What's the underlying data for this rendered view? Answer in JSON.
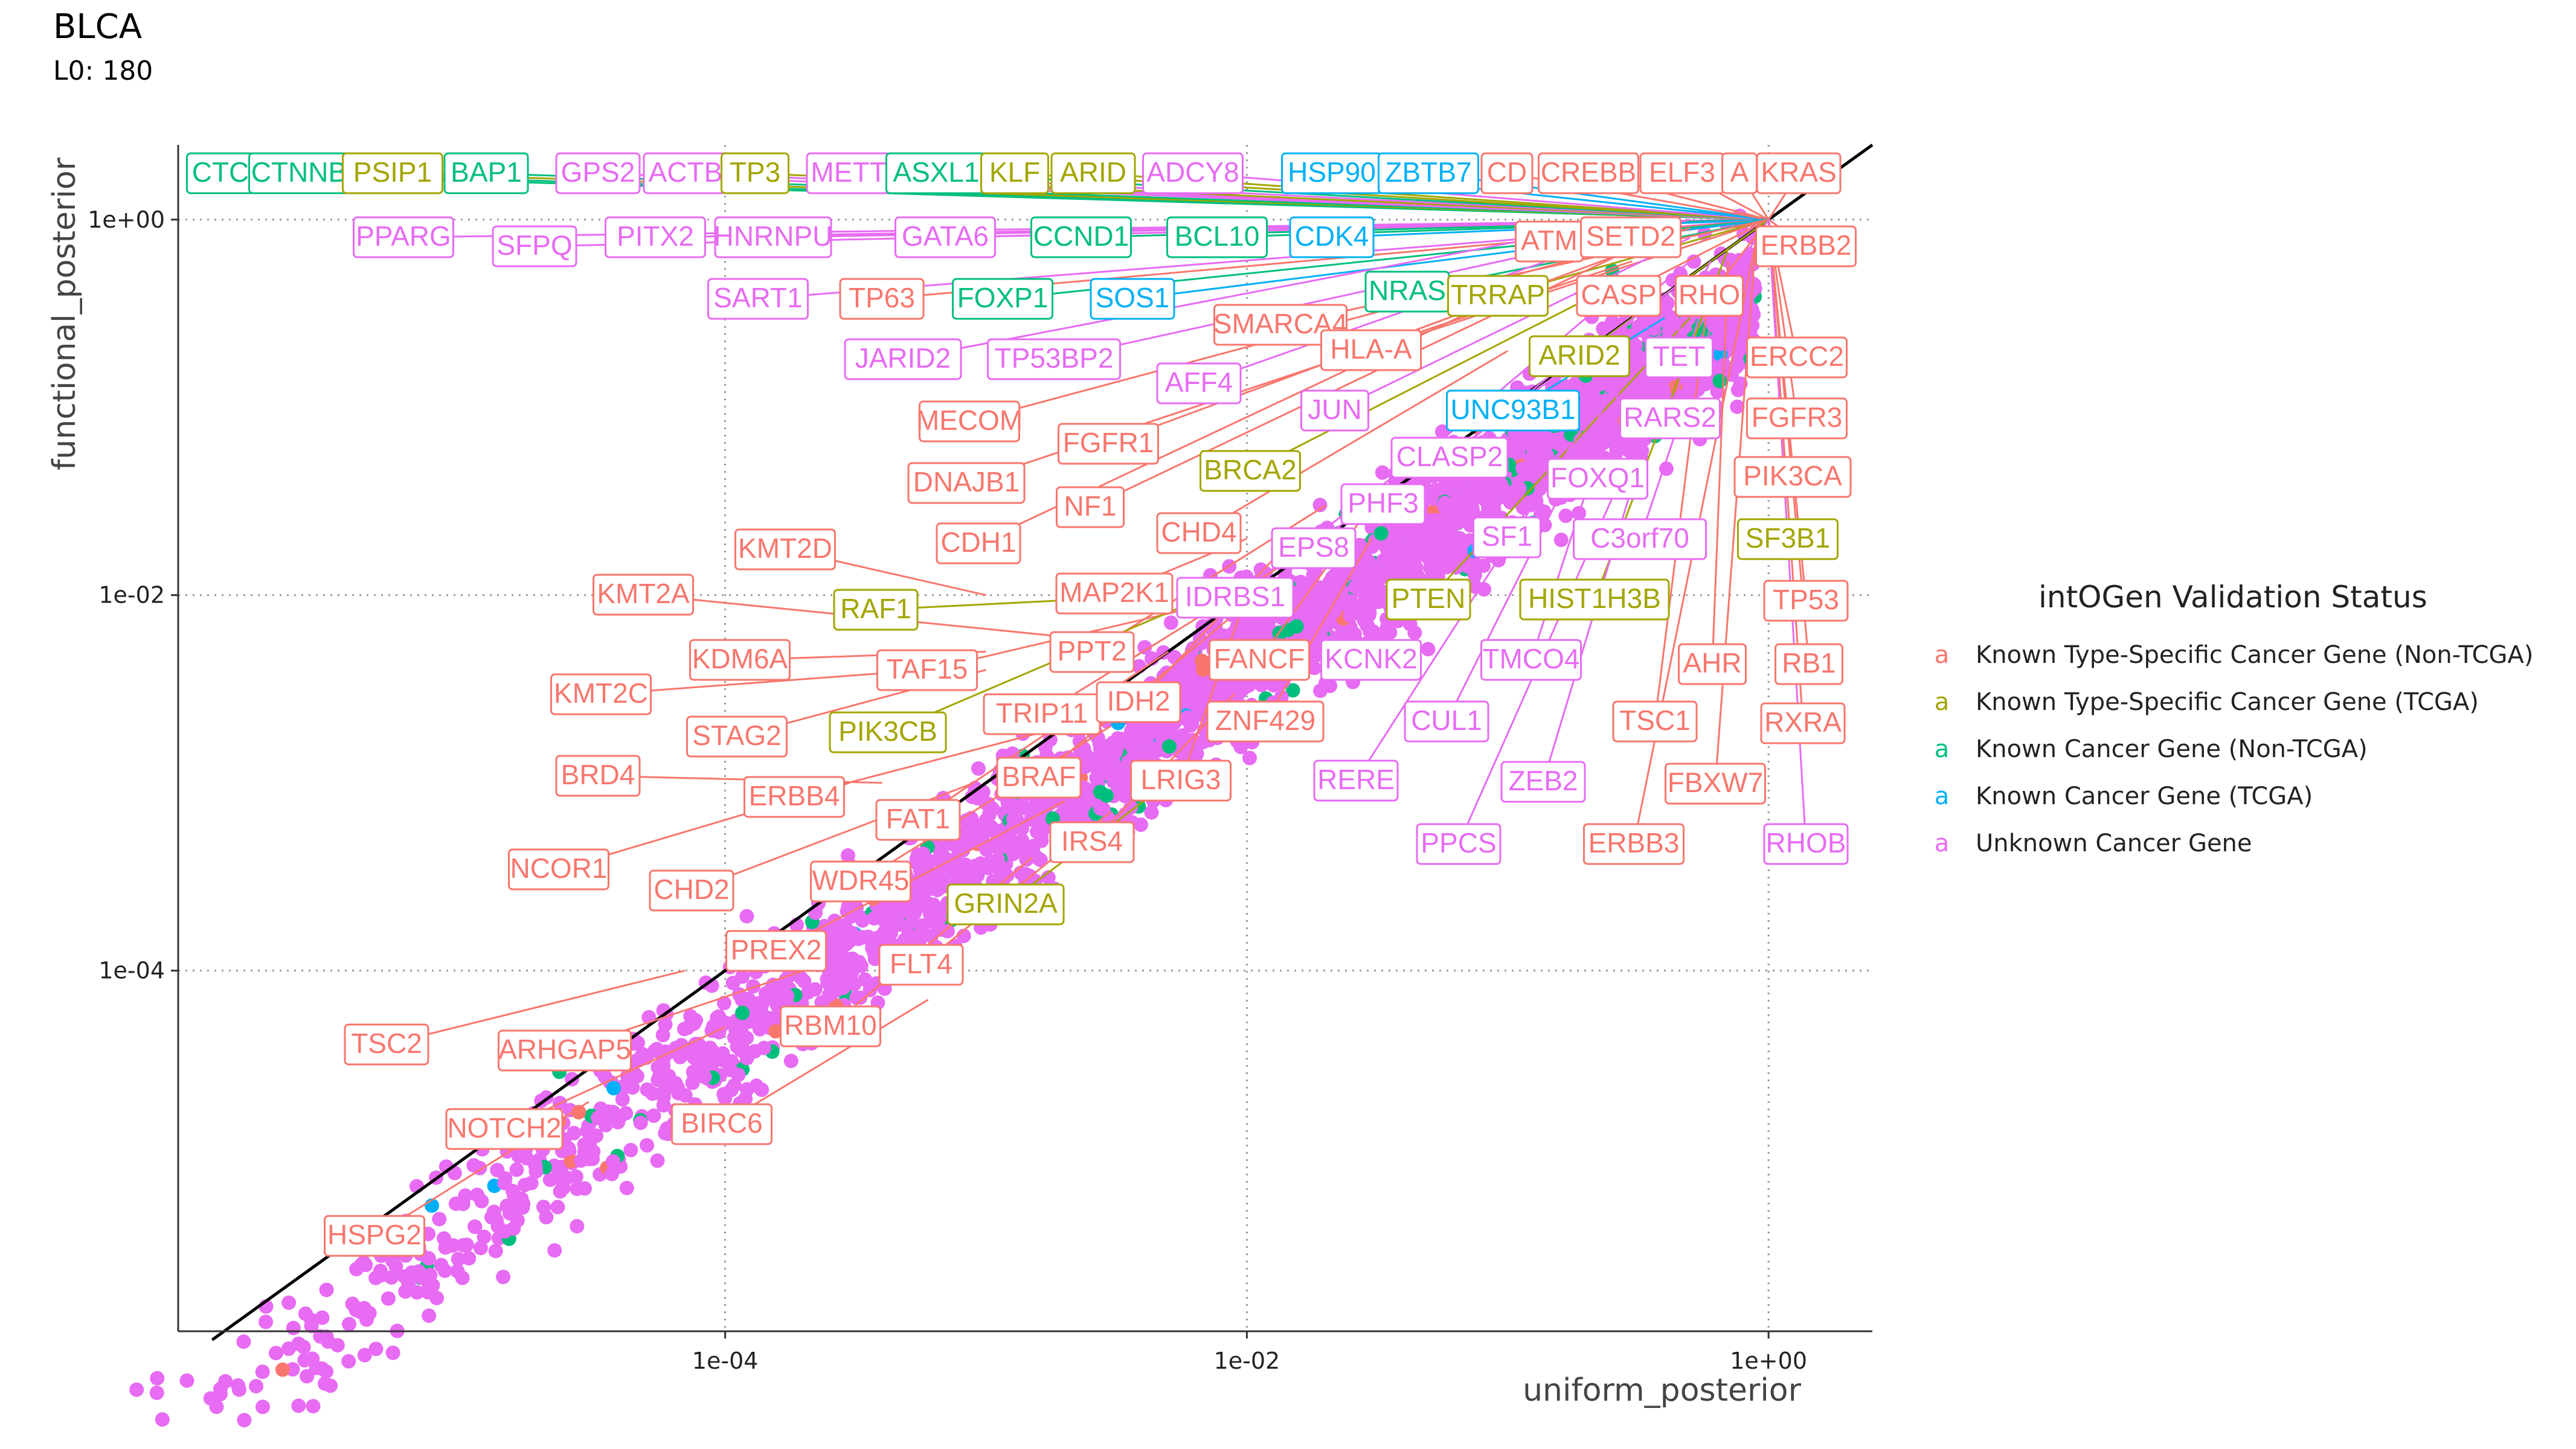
{
  "chart_data": {
    "type": "scatter",
    "title": "BLCA",
    "subtitle": "L0: 180",
    "xlabel": "uniform_posterior",
    "ylabel": "functional_posterior",
    "xscale": "log10",
    "yscale": "log10",
    "xlim": [
      8e-07,
      2.5
    ],
    "ylim": [
      1.2e-06,
      2.5
    ],
    "xticks": [
      {
        "value": 0.0001,
        "label": "1e-04"
      },
      {
        "value": 0.01,
        "label": "1e-02"
      },
      {
        "value": 1,
        "label": "1e+00"
      }
    ],
    "yticks": [
      {
        "value": 0.0001,
        "label": "1e-04"
      },
      {
        "value": 0.01,
        "label": "1e-02"
      },
      {
        "value": 1,
        "label": "1e+00"
      }
    ],
    "grid": "dotted major gridlines",
    "reference_line": "y = x (black)",
    "legend": {
      "title": "intOGen Validation Status",
      "position": "right",
      "entries": [
        {
          "key": "a",
          "label": "Known Type-Specific Cancer Gene (Non-TCGA)",
          "color": "#F8766D"
        },
        {
          "key": "a",
          "label": "Known Type-Specific Cancer Gene (TCGA)",
          "color": "#A3A500"
        },
        {
          "key": "a",
          "label": "Known Cancer Gene (Non-TCGA)",
          "color": "#00BF7D"
        },
        {
          "key": "a",
          "label": "Known Cancer Gene (TCGA)",
          "color": "#00B0F6"
        },
        {
          "key": "a",
          "label": "Unknown Cancer Gene",
          "color": "#E76BF3"
        }
      ]
    },
    "labeled_genes": [
      {
        "gene": "CTC",
        "status": 2,
        "x": 1.0,
        "y": 1.0
      },
      {
        "gene": "CTNNB",
        "status": 2,
        "x": 1.0,
        "y": 1.0
      },
      {
        "gene": "PSIP1",
        "status": 1,
        "x": 1.0,
        "y": 1.0
      },
      {
        "gene": "BAP1",
        "status": 2,
        "x": 1.0,
        "y": 1.0
      },
      {
        "gene": "GPS2",
        "status": 4,
        "x": 1.0,
        "y": 1.0
      },
      {
        "gene": "ACTB",
        "status": 4,
        "x": 1.0,
        "y": 1.0
      },
      {
        "gene": "TP3",
        "status": 1,
        "x": 1.0,
        "y": 1.0
      },
      {
        "gene": "METT",
        "status": 4,
        "x": 1.0,
        "y": 1.0
      },
      {
        "gene": "ASXL1",
        "status": 2,
        "x": 1.0,
        "y": 1.0
      },
      {
        "gene": "KLF",
        "status": 1,
        "x": 1.0,
        "y": 1.0
      },
      {
        "gene": "ARID",
        "status": 1,
        "x": 1.0,
        "y": 1.0
      },
      {
        "gene": "ADCY8",
        "status": 4,
        "x": 1.0,
        "y": 1.0
      },
      {
        "gene": "HSP90",
        "status": 3,
        "x": 1.0,
        "y": 1.0
      },
      {
        "gene": "ZBTB7",
        "status": 3,
        "x": 1.0,
        "y": 1.0
      },
      {
        "gene": "CD",
        "status": 0,
        "x": 1.0,
        "y": 1.0
      },
      {
        "gene": "CREBB",
        "status": 0,
        "x": 1.0,
        "y": 1.0
      },
      {
        "gene": "ELF3",
        "status": 0,
        "x": 1.0,
        "y": 1.0
      },
      {
        "gene": "A",
        "status": 0,
        "x": 1.0,
        "y": 1.0
      },
      {
        "gene": "KRAS",
        "status": 0,
        "x": 1.0,
        "y": 1.0
      },
      {
        "gene": "PPARG",
        "status": 4,
        "x": 1.0,
        "y": 1.0
      },
      {
        "gene": "SFPQ",
        "status": 4,
        "x": 1.0,
        "y": 1.0
      },
      {
        "gene": "PITX2",
        "status": 4,
        "x": 1.0,
        "y": 1.0
      },
      {
        "gene": "HNRNPU",
        "status": 4,
        "x": 1.0,
        "y": 1.0
      },
      {
        "gene": "GATA6",
        "status": 4,
        "x": 1.0,
        "y": 1.0
      },
      {
        "gene": "CCND1",
        "status": 2,
        "x": 1.0,
        "y": 1.0
      },
      {
        "gene": "BCL10",
        "status": 2,
        "x": 1.0,
        "y": 1.0
      },
      {
        "gene": "CDK4",
        "status": 3,
        "x": 1.0,
        "y": 1.0
      },
      {
        "gene": "ATM",
        "status": 0,
        "x": 1.0,
        "y": 1.0
      },
      {
        "gene": "SETD2",
        "status": 0,
        "x": 1.0,
        "y": 1.0
      },
      {
        "gene": "ERBB2",
        "status": 0,
        "x": 1.0,
        "y": 1.0
      },
      {
        "gene": "SART1",
        "status": 4,
        "x": 1.0,
        "y": 1.0
      },
      {
        "gene": "TP63",
        "status": 0,
        "x": 1.0,
        "y": 1.0
      },
      {
        "gene": "FOXP1",
        "status": 2,
        "x": 1.0,
        "y": 1.0
      },
      {
        "gene": "SOS1",
        "status": 3,
        "x": 1.0,
        "y": 1.0
      },
      {
        "gene": "NRAS",
        "status": 2,
        "x": 1.0,
        "y": 1.0
      },
      {
        "gene": "TRRAP",
        "status": 1,
        "x": 1.0,
        "y": 1.0
      },
      {
        "gene": "CASP",
        "status": 0,
        "x": 1.0,
        "y": 1.0
      },
      {
        "gene": "RHO",
        "status": 0,
        "x": 1.0,
        "y": 1.0
      },
      {
        "gene": "SMARCA4",
        "status": 0,
        "x": 1.0,
        "y": 1.0
      },
      {
        "gene": "JARID2",
        "status": 4,
        "x": 0.3,
        "y": 1.0
      },
      {
        "gene": "TP53BP2",
        "status": 4,
        "x": 0.5,
        "y": 1.0
      },
      {
        "gene": "HLA-A",
        "status": 0,
        "x": 1.0,
        "y": 1.0
      },
      {
        "gene": "ARID2",
        "status": 1,
        "x": 1.0,
        "y": 1.0
      },
      {
        "gene": "TET",
        "status": 4,
        "x": 1.0,
        "y": 1.0
      },
      {
        "gene": "ERCC2",
        "status": 0,
        "x": 1.0,
        "y": 1.0
      },
      {
        "gene": "AFF4",
        "status": 4,
        "x": 0.4,
        "y": 1.0
      },
      {
        "gene": "MECOM",
        "status": 0,
        "x": 0.5,
        "y": 0.9
      },
      {
        "gene": "JUN",
        "status": 4,
        "x": 0.5,
        "y": 0.8
      },
      {
        "gene": "UNC93B1",
        "status": 3,
        "x": 0.4,
        "y": 0.3
      },
      {
        "gene": "RARS2",
        "status": 4,
        "x": 0.6,
        "y": 0.5
      },
      {
        "gene": "FGFR3",
        "status": 0,
        "x": 1.0,
        "y": 1.0
      },
      {
        "gene": "FGFR1",
        "status": 0,
        "x": 0.4,
        "y": 0.8
      },
      {
        "gene": "CLASP2",
        "status": 4,
        "x": 0.5,
        "y": 0.6
      },
      {
        "gene": "FOXQ1",
        "status": 4,
        "x": 0.6,
        "y": 0.6
      },
      {
        "gene": "PIK3CA",
        "status": 0,
        "x": 1.0,
        "y": 1.0
      },
      {
        "gene": "DNAJB1",
        "status": 0,
        "x": 0.3,
        "y": 0.6
      },
      {
        "gene": "BRCA2",
        "status": 1,
        "x": 0.3,
        "y": 0.5
      },
      {
        "gene": "NF1",
        "status": 0,
        "x": 0.3,
        "y": 0.7
      },
      {
        "gene": "PHF3",
        "status": 4,
        "x": 0.5,
        "y": 0.5
      },
      {
        "gene": "SF1",
        "status": 4,
        "x": 0.5,
        "y": 0.4
      },
      {
        "gene": "C3orf70",
        "status": 4,
        "x": 0.7,
        "y": 0.5
      },
      {
        "gene": "SF3B1",
        "status": 1,
        "x": 1.0,
        "y": 1.0
      },
      {
        "gene": "CDH1",
        "status": 0,
        "x": 0.1,
        "y": 0.4
      },
      {
        "gene": "CHD4",
        "status": 0,
        "x": 0.1,
        "y": 0.2
      },
      {
        "gene": "EPS8",
        "status": 4,
        "x": 0.2,
        "y": 0.3
      },
      {
        "gene": "KMT2D",
        "status": 0,
        "x": 0.001,
        "y": 0.01
      },
      {
        "gene": "MAP2K1",
        "status": 0,
        "x": 0.01,
        "y": 0.02
      },
      {
        "gene": "IDRBS1",
        "status": 4,
        "x": 0.05,
        "y": 0.06
      },
      {
        "gene": "PTEN",
        "status": 1,
        "x": 0.5,
        "y": 0.3
      },
      {
        "gene": "HIST1H3B",
        "status": 1,
        "x": 0.7,
        "y": 0.7
      },
      {
        "gene": "TP53",
        "status": 0,
        "x": 1.0,
        "y": 1.0
      },
      {
        "gene": "KMT2A",
        "status": 0,
        "x": 0.002,
        "y": 0.006
      },
      {
        "gene": "RAF1",
        "status": 1,
        "x": 0.005,
        "y": 0.01
      },
      {
        "gene": "PPT2",
        "status": 0,
        "x": 0.02,
        "y": 0.03
      },
      {
        "gene": "KDM6A",
        "status": 0,
        "x": 0.001,
        "y": 0.005
      },
      {
        "gene": "TAF15",
        "status": 0,
        "x": 0.01,
        "y": 0.01
      },
      {
        "gene": "FANCF",
        "status": 0,
        "x": 0.03,
        "y": 0.03
      },
      {
        "gene": "KCNK2",
        "status": 4,
        "x": 0.05,
        "y": 0.05
      },
      {
        "gene": "TMCO4",
        "status": 4,
        "x": 0.3,
        "y": 0.2
      },
      {
        "gene": "AHR",
        "status": 0,
        "x": 0.7,
        "y": 0.6
      },
      {
        "gene": "RB1",
        "status": 0,
        "x": 1.0,
        "y": 1.0
      },
      {
        "gene": "KMT2C",
        "status": 0,
        "x": 0.0006,
        "y": 0.004
      },
      {
        "gene": "TRIP11",
        "status": 0,
        "x": 0.02,
        "y": 0.02
      },
      {
        "gene": "IDH2",
        "status": 0,
        "x": 0.015,
        "y": 0.02
      },
      {
        "gene": "ZNF429",
        "status": 0,
        "x": 0.03,
        "y": 0.02
      },
      {
        "gene": "CUL1",
        "status": 4,
        "x": 0.3,
        "y": 0.2
      },
      {
        "gene": "TSC1",
        "status": 0,
        "x": 0.6,
        "y": 0.5
      },
      {
        "gene": "RXRA",
        "status": 0,
        "x": 1.0,
        "y": 1.0
      },
      {
        "gene": "STAG2",
        "status": 0,
        "x": 0.001,
        "y": 0.004
      },
      {
        "gene": "PIK3CB",
        "status": 1,
        "x": 0.006,
        "y": 0.009
      },
      {
        "gene": "BRD4",
        "status": 0,
        "x": 0.0004,
        "y": 0.001
      },
      {
        "gene": "BRAF",
        "status": 0,
        "x": 0.01,
        "y": 0.009
      },
      {
        "gene": "LRIG3",
        "status": 0,
        "x": 0.01,
        "y": 0.01
      },
      {
        "gene": "RERE",
        "status": 4,
        "x": 0.3,
        "y": 0.2
      },
      {
        "gene": "ZEB2",
        "status": 4,
        "x": 0.5,
        "y": 0.4
      },
      {
        "gene": "FBXW7",
        "status": 0,
        "x": 0.9,
        "y": 0.9
      },
      {
        "gene": "ERBB4",
        "status": 0,
        "x": 0.002,
        "y": 0.002
      },
      {
        "gene": "FAT1",
        "status": 0,
        "x": 0.005,
        "y": 0.005
      },
      {
        "gene": "NCOR1",
        "status": 0,
        "x": 0.0003,
        "y": 0.001
      },
      {
        "gene": "IRS4",
        "status": 0,
        "x": 0.009,
        "y": 0.003
      },
      {
        "gene": "PPCS",
        "status": 4,
        "x": 0.6,
        "y": 0.5
      },
      {
        "gene": "ERBB3",
        "status": 0,
        "x": 0.9,
        "y": 0.8
      },
      {
        "gene": "RHOB",
        "status": 4,
        "x": 1.0,
        "y": 1.0
      },
      {
        "gene": "WDR45",
        "status": 0,
        "x": 0.003,
        "y": 0.002
      },
      {
        "gene": "CHD2",
        "status": 0,
        "x": 0.0009,
        "y": 0.001
      },
      {
        "gene": "GRIN2A",
        "status": 1,
        "x": 0.005,
        "y": 0.001
      },
      {
        "gene": "PREX2",
        "status": 0,
        "x": 0.002,
        "y": 0.0008
      },
      {
        "gene": "FLT4",
        "status": 0,
        "x": 0.003,
        "y": 0.0007
      },
      {
        "gene": "RBM10",
        "status": 0,
        "x": 0.0015,
        "y": 0.0004
      },
      {
        "gene": "TSC2",
        "status": 0,
        "x": 7e-05,
        "y": 0.0001
      },
      {
        "gene": "ARHGAP5",
        "status": 0,
        "x": 0.0002,
        "y": 0.0001
      },
      {
        "gene": "NOTCH2",
        "status": 0,
        "x": 0.0001,
        "y": 5e-05
      },
      {
        "gene": "BIRC6",
        "status": 0,
        "x": 0.0006,
        "y": 7e-05
      },
      {
        "gene": "HSPG2",
        "status": 0,
        "x": 3e-05,
        "y": 2e-05
      }
    ]
  }
}
